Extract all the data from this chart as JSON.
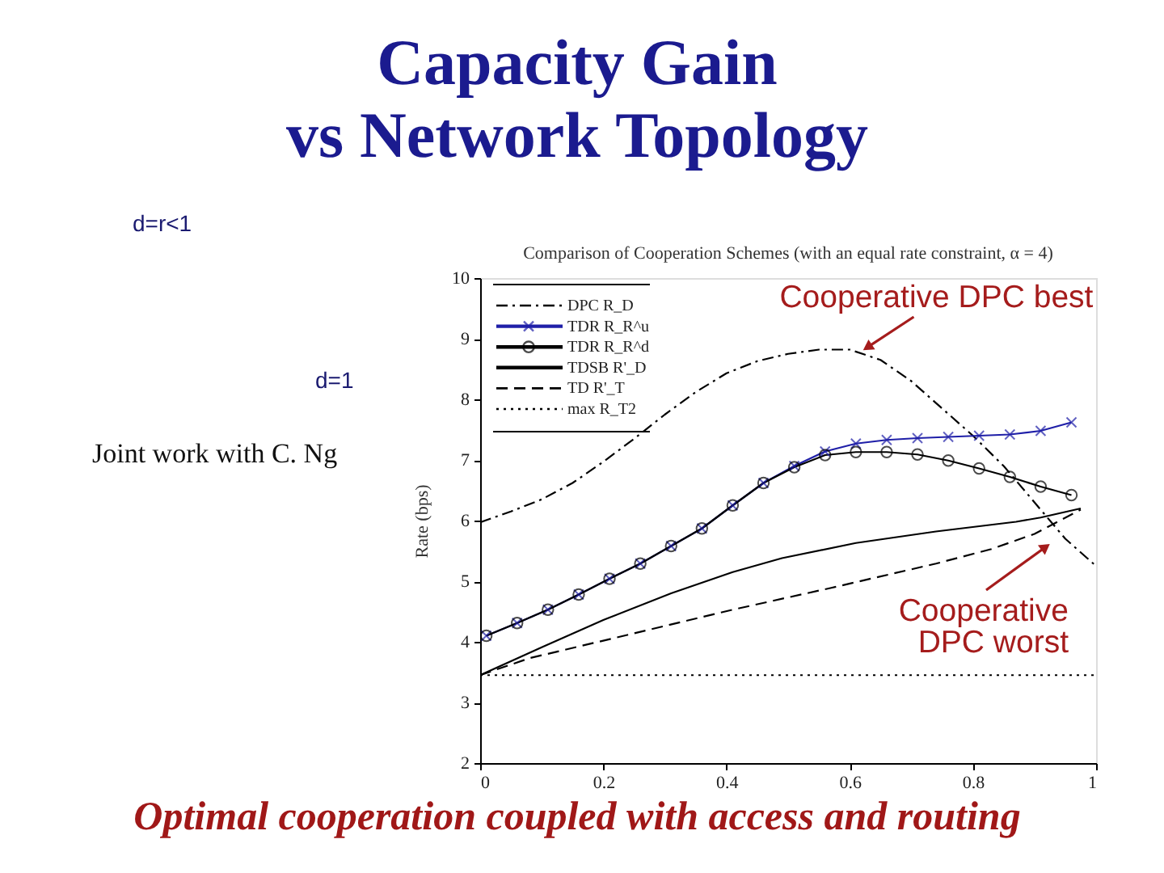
{
  "chart_data": {
    "type": "line",
    "title": "Capacity Gain\nvs Network Topology",
    "subtitle": "Comparison of Cooperation Schemes (with an equal rate constraint, α = 4)",
    "ylabel": "Rate (bps)",
    "xlim": [
      0,
      1
    ],
    "xticks": [
      0,
      0.2,
      0.4,
      0.6,
      0.8,
      1
    ],
    "ylim": [
      2,
      10
    ],
    "yticks": [
      2,
      3,
      4,
      5,
      6,
      7,
      8,
      9,
      10
    ],
    "legend": "top left",
    "series": [
      {
        "name": "DPC R_D",
        "color": "#000000",
        "line_style": "dashdot",
        "x": [
          0,
          0.05,
          0.1,
          0.15,
          0.2,
          0.25,
          0.3,
          0.35,
          0.4,
          0.45,
          0.5,
          0.55,
          0.6,
          0.65,
          0.7,
          0.75,
          0.8,
          0.85,
          0.9,
          0.95,
          1
        ],
        "values": [
          5.97,
          6.15,
          6.35,
          6.62,
          6.97,
          7.35,
          7.75,
          8.12,
          8.43,
          8.63,
          8.75,
          8.82,
          8.82,
          8.65,
          8.3,
          7.85,
          7.4,
          6.9,
          6.3,
          5.7,
          5.25
        ]
      },
      {
        "name": "TDR R_R^u",
        "color": "#1f1fa8",
        "line_style": "solid",
        "marker": "cross",
        "x": [
          0.01,
          0.06,
          0.11,
          0.16,
          0.21,
          0.26,
          0.31,
          0.36,
          0.41,
          0.46,
          0.51,
          0.56,
          0.61,
          0.66,
          0.71,
          0.76,
          0.81,
          0.86,
          0.91,
          0.96
        ],
        "values": [
          4.1,
          4.31,
          4.53,
          4.78,
          5.04,
          5.29,
          5.58,
          5.87,
          6.25,
          6.62,
          6.9,
          7.14,
          7.27,
          7.33,
          7.36,
          7.38,
          7.4,
          7.42,
          7.48,
          7.62
        ]
      },
      {
        "name": "TDR R_R^d",
        "color": "#000000",
        "line_style": "solid",
        "marker": "circle",
        "x": [
          0.01,
          0.06,
          0.11,
          0.16,
          0.21,
          0.26,
          0.31,
          0.36,
          0.41,
          0.46,
          0.51,
          0.56,
          0.61,
          0.66,
          0.71,
          0.76,
          0.81,
          0.86,
          0.91,
          0.96
        ],
        "values": [
          4.1,
          4.31,
          4.53,
          4.78,
          5.04,
          5.29,
          5.58,
          5.87,
          6.25,
          6.62,
          6.88,
          7.08,
          7.13,
          7.13,
          7.09,
          6.99,
          6.86,
          6.72,
          6.56,
          6.42
        ]
      },
      {
        "name": "TDSB R'_D",
        "color": "#000000",
        "line_style": "solid",
        "x": [
          0,
          0.1,
          0.2,
          0.31,
          0.41,
          0.49,
          0.61,
          0.74,
          0.87,
          0.91,
          0.975
        ],
        "values": [
          3.45,
          3.91,
          4.36,
          4.8,
          5.15,
          5.38,
          5.63,
          5.82,
          5.98,
          6.05,
          6.2
        ]
      },
      {
        "name": "TD R'_T",
        "color": "#000000",
        "line_style": "dashed",
        "x": [
          0,
          0.08,
          0.25,
          0.41,
          0.57,
          0.74,
          0.83,
          0.9,
          0.975
        ],
        "values": [
          3.45,
          3.73,
          4.14,
          4.53,
          4.89,
          5.29,
          5.53,
          5.78,
          6.18
        ]
      },
      {
        "name": "max R_T2",
        "color": "#000000",
        "line_style": "dotted",
        "x": [
          0,
          1
        ],
        "values": [
          3.45,
          3.45
        ]
      }
    ],
    "annotations": [
      {
        "text": "Cooperative DPC best",
        "x": 0.62,
        "y": 8.8
      },
      "Cooperative\nDPC worst",
      "Joint work with C. Ng",
      "d=r<1",
      "d=1",
      "Optimal cooperation coupled with access and routing"
    ]
  }
}
